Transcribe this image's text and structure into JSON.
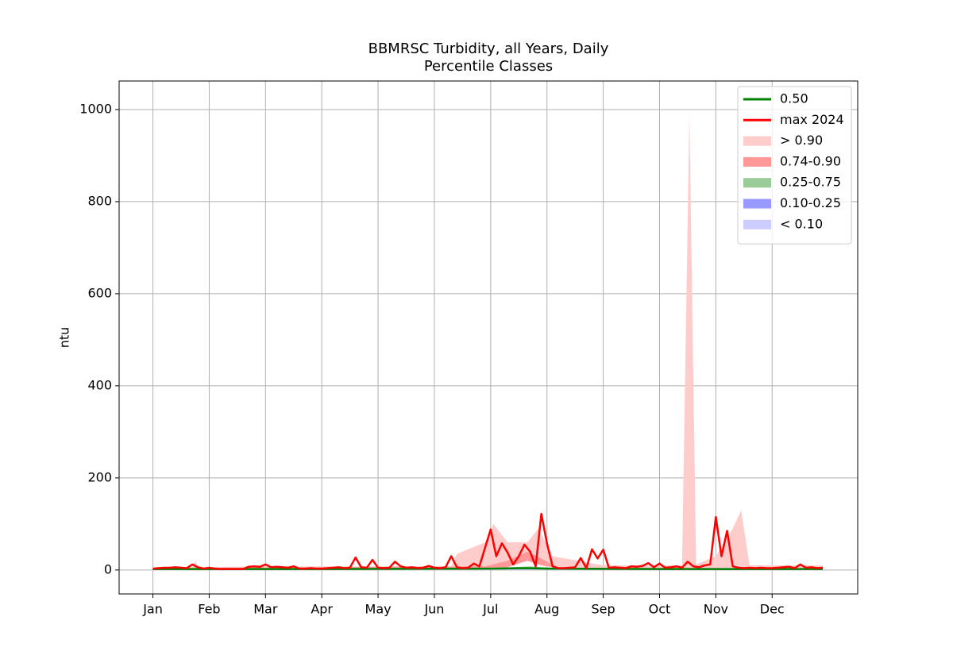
{
  "chart_data": {
    "type": "line",
    "title": "BBMRSC Turbidity, all Years, Daily",
    "subtitle": "Percentile Classes",
    "y_label": "ntu",
    "xlim": [
      -0.6,
      12.52
    ],
    "ylim": [
      -52,
      1062
    ],
    "xticks": [
      {
        "value": 0,
        "label": "Jan"
      },
      {
        "value": 1,
        "label": "Feb"
      },
      {
        "value": 2,
        "label": "Mar"
      },
      {
        "value": 3,
        "label": "Apr"
      },
      {
        "value": 4,
        "label": "May"
      },
      {
        "value": 5,
        "label": "Jun"
      },
      {
        "value": 6,
        "label": "Jul"
      },
      {
        "value": 7,
        "label": "Aug"
      },
      {
        "value": 8,
        "label": "Sep"
      },
      {
        "value": 9,
        "label": "Oct"
      },
      {
        "value": 10,
        "label": "Nov"
      },
      {
        "value": 11,
        "label": "Dec"
      }
    ],
    "yticks": [
      0,
      200,
      400,
      600,
      800,
      1000
    ],
    "grid": true,
    "legend": "upper right",
    "series": [
      {
        "name": "0.50",
        "color": "#008000",
        "x": [
          0,
          3,
          6,
          6.6,
          7,
          9,
          11.9
        ],
        "values": [
          2,
          2,
          3,
          4,
          3,
          2,
          2
        ]
      },
      {
        "name": "max 2024",
        "color": "#ff0000",
        "x": [
          0,
          0.1,
          0.2,
          0.3,
          0.4,
          0.5,
          0.6,
          0.7,
          0.8,
          0.9,
          1,
          1.1,
          1.2,
          1.3,
          1.4,
          1.5,
          1.6,
          1.7,
          1.8,
          1.9,
          2,
          2.1,
          2.2,
          2.3,
          2.4,
          2.5,
          2.6,
          2.7,
          2.8,
          2.9,
          3,
          3.1,
          3.2,
          3.3,
          3.4,
          3.5,
          3.6,
          3.7,
          3.8,
          3.9,
          4,
          4.1,
          4.2,
          4.3,
          4.4,
          4.5,
          4.6,
          4.7,
          4.8,
          4.9,
          5,
          5.1,
          5.2,
          5.3,
          5.4,
          5.5,
          5.6,
          5.7,
          5.8,
          5.9,
          6,
          6.1,
          6.2,
          6.3,
          6.4,
          6.5,
          6.6,
          6.7,
          6.8,
          6.9,
          7,
          7.1,
          7.2,
          7.3,
          7.4,
          7.5,
          7.6,
          7.7,
          7.8,
          7.9,
          8,
          8.1,
          8.2,
          8.3,
          8.4,
          8.5,
          8.6,
          8.7,
          8.8,
          8.9,
          9,
          9.1,
          9.2,
          9.3,
          9.4,
          9.5,
          9.6,
          9.7,
          9.8,
          9.9,
          10,
          10.1,
          10.2,
          10.3,
          10.4,
          10.5,
          10.6,
          10.7,
          10.8,
          10.9,
          11,
          11.1,
          11.2,
          11.3,
          11.4,
          11.5,
          11.6,
          11.7,
          11.8,
          11.9
        ],
        "values": [
          3,
          4,
          5,
          5,
          6,
          5,
          4,
          12,
          6,
          3,
          5,
          3,
          2,
          2,
          2,
          2,
          2,
          7,
          8,
          7,
          12,
          6,
          7,
          6,
          5,
          8,
          3,
          3,
          4,
          3,
          3,
          4,
          5,
          6,
          4,
          5,
          27,
          6,
          5,
          22,
          5,
          4,
          5,
          18,
          8,
          5,
          6,
          4,
          5,
          9,
          5,
          4,
          6,
          30,
          6,
          4,
          5,
          14,
          8,
          48,
          88,
          30,
          58,
          38,
          12,
          30,
          55,
          40,
          8,
          122,
          58,
          8,
          4,
          4,
          5,
          6,
          26,
          4,
          45,
          25,
          44,
          5,
          6,
          5,
          4,
          8,
          7,
          9,
          15,
          6,
          14,
          5,
          6,
          8,
          5,
          18,
          8,
          6,
          10,
          12,
          115,
          30,
          85,
          8,
          5,
          4,
          5,
          4,
          5,
          4,
          4,
          5,
          6,
          7,
          4,
          12,
          5,
          6,
          4,
          5
        ]
      }
    ],
    "bands": [
      {
        "name": "> 0.90",
        "color": "#ffcccc",
        "x": [
          0,
          0.7,
          0.75,
          0.8,
          2,
          4,
          5.3,
          5.4,
          5.9,
          6.05,
          6.3,
          6.65,
          6.85,
          7.1,
          8,
          9.4,
          9.53,
          9.65,
          10,
          10.3,
          10.45,
          10.6,
          11.9
        ],
        "lower": [
          3,
          3,
          4,
          3,
          3,
          3,
          3,
          4,
          8,
          10,
          8,
          20,
          25,
          5,
          3,
          3,
          4,
          3,
          5,
          5,
          5,
          3,
          3
        ],
        "upper": [
          6,
          6,
          20,
          6,
          8,
          8,
          8,
          35,
          60,
          100,
          60,
          60,
          90,
          30,
          10,
          10,
          990,
          12,
          30,
          90,
          130,
          10,
          10
        ]
      },
      {
        "name": "0.74-0.90",
        "color": "#ff9999",
        "x": [
          0,
          5.9,
          6.3,
          6.65,
          6.9,
          7.2,
          11.9
        ],
        "lower": [
          3,
          4,
          6,
          20,
          10,
          4,
          3
        ],
        "upper": [
          4,
          8,
          20,
          40,
          25,
          5,
          4
        ]
      },
      {
        "name": "0.25-0.75",
        "color": "#99cc99",
        "x": [
          0,
          6,
          6.7,
          7.2,
          11.9
        ],
        "lower": [
          1,
          2,
          2,
          2,
          1
        ],
        "upper": [
          3,
          4,
          8,
          4,
          3
        ]
      },
      {
        "name": "0.10-0.25",
        "color": "#9999ff",
        "x": [
          0,
          11.9
        ],
        "lower": [
          0.5,
          0.5
        ],
        "upper": [
          1,
          1
        ]
      },
      {
        "name": "< 0.10",
        "color": "#ccccff",
        "x": [
          0,
          11.9
        ],
        "lower": [
          0,
          0
        ],
        "upper": [
          0.5,
          0.5
        ]
      }
    ]
  }
}
